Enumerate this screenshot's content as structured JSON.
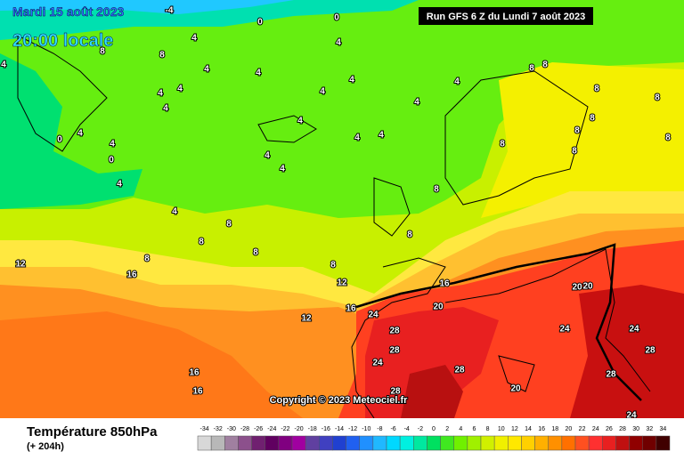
{
  "header": {
    "date": "Mardi 15 août 2023",
    "time": "20:00 locale",
    "run": "Run GFS 6 Z du Lundi 7 août 2023"
  },
  "copyright": "Copyright © 2023 Meteociel.fr",
  "footer": {
    "title": "Température 850hPa",
    "lead": "(+ 204h)"
  },
  "legend": {
    "values": [
      -34,
      -32,
      -30,
      -28,
      -26,
      -24,
      -22,
      -20,
      -18,
      -16,
      -14,
      -12,
      -10,
      -8,
      -6,
      -4,
      -2,
      0,
      2,
      4,
      6,
      8,
      10,
      12,
      14,
      16,
      18,
      20,
      22,
      24,
      26,
      28,
      30,
      32,
      34
    ],
    "colors": [
      "#d8d8d8",
      "#b8b8b8",
      "#a080a0",
      "#8c508c",
      "#702070",
      "#600060",
      "#800080",
      "#a000a0",
      "#6040a0",
      "#4040c0",
      "#2040d0",
      "#2060f0",
      "#2090ff",
      "#20b8ff",
      "#00d8ff",
      "#00f0e0",
      "#00e8a0",
      "#00e060",
      "#40e820",
      "#70f000",
      "#a0f000",
      "#d0f000",
      "#f0f000",
      "#ffe800",
      "#ffd000",
      "#ffb000",
      "#ff9000",
      "#ff7000",
      "#ff5020",
      "#ff3030",
      "#e82020",
      "#c01010",
      "#900000",
      "#700000",
      "#400000"
    ]
  },
  "contour_labels": [
    -4,
    0,
    0,
    4,
    4,
    8,
    8,
    4,
    4,
    4,
    4,
    4,
    8,
    8,
    8,
    8,
    4,
    4,
    4,
    4,
    4,
    4,
    8,
    4,
    0,
    4,
    4,
    4,
    8,
    8,
    8,
    4,
    0,
    4,
    8,
    4,
    8,
    4,
    8,
    8,
    8,
    8,
    8,
    12,
    8,
    16,
    12,
    16,
    20,
    20,
    16,
    24,
    20,
    12,
    24,
    24,
    28,
    28,
    24,
    28,
    28,
    16,
    28,
    20,
    16,
    28,
    24
  ]
}
